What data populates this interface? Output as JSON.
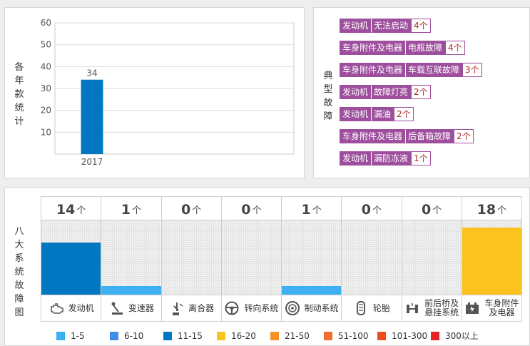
{
  "year_panel": {
    "title": "各年款统计"
  },
  "chart_data": [
    {
      "type": "bar",
      "title": "",
      "ylabel": "各年款统计",
      "categories": [
        "2017"
      ],
      "values": [
        34
      ],
      "ylim": [
        0,
        60
      ],
      "yticks": [
        10,
        20,
        30,
        40,
        50,
        60
      ],
      "bar_color": "#0077c0",
      "grid": true
    },
    {
      "type": "bar",
      "title": "",
      "ylabel": "八大系统故障图",
      "unit": "个",
      "categories": [
        "发动机",
        "变速器",
        "离合器",
        "转向系统",
        "制动系统",
        "轮胎",
        "前后桥及悬挂系统",
        "车身附件及电器"
      ],
      "values": [
        14,
        1,
        0,
        0,
        1,
        0,
        0,
        18
      ],
      "legend": [
        {
          "range": "1-5",
          "color": "#3cb0f0"
        },
        {
          "range": "6-10",
          "color": "#3d8ee8"
        },
        {
          "range": "11-15",
          "color": "#0077c0"
        },
        {
          "range": "16-20",
          "color": "#fcc21e"
        },
        {
          "range": "21-50",
          "color": "#f6922a"
        },
        {
          "range": "51-100",
          "color": "#f2702e"
        },
        {
          "range": "101-300",
          "color": "#ee4d1c"
        },
        {
          "range": "300以上",
          "color": "#e62424"
        }
      ]
    }
  ],
  "faults_panel": {
    "title": "典型故障",
    "unit": "个",
    "rows": [
      {
        "system": "发动机",
        "fault": "无法启动",
        "count": "4"
      },
      {
        "system": "车身附件及电器",
        "fault": "电瓶故障",
        "count": "4"
      },
      {
        "system": "车身附件及电器",
        "fault": "车载互联故障",
        "count": "3"
      },
      {
        "system": "发动机",
        "fault": "故障灯亮",
        "count": "2"
      },
      {
        "system": "发动机",
        "fault": "漏油",
        "count": "2"
      },
      {
        "system": "车身附件及电器",
        "fault": "后备箱故障",
        "count": "2"
      },
      {
        "system": "发动机",
        "fault": "漏防冻液",
        "count": "1"
      }
    ]
  },
  "systems_panel": {
    "title": "八大系统故障图",
    "unit": "个",
    "systems": [
      {
        "name_lines": [
          "发动机"
        ],
        "count": "14",
        "icon": "engine-icon"
      },
      {
        "name_lines": [
          "变速器"
        ],
        "count": "1",
        "icon": "gear-shift-icon"
      },
      {
        "name_lines": [
          "离合器"
        ],
        "count": "0",
        "icon": "clutch-pedal-icon"
      },
      {
        "name_lines": [
          "转向系统"
        ],
        "count": "0",
        "icon": "steering-wheel-icon"
      },
      {
        "name_lines": [
          "制动系统"
        ],
        "count": "1",
        "icon": "brake-disc-icon"
      },
      {
        "name_lines": [
          "轮胎"
        ],
        "count": "0",
        "icon": "tire-icon"
      },
      {
        "name_lines": [
          "前后桥及",
          "悬挂系统"
        ],
        "count": "0",
        "icon": "axle-icon"
      },
      {
        "name_lines": [
          "车身附件",
          "及电器"
        ],
        "count": "18",
        "icon": "battery-icon"
      }
    ]
  }
}
